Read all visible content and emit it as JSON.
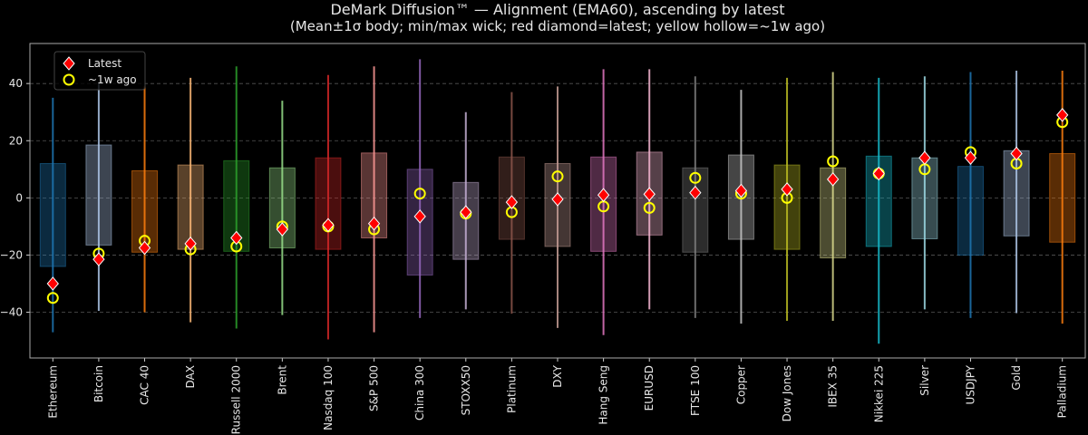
{
  "chart_data": {
    "type": "range",
    "title": "DeMark Diffusion™ — Alignment (EMA60), ascending by latest",
    "subtitle": "(Mean±1σ body; min/max wick; red diamond=latest; yellow hollow=~1w ago)",
    "categories": [
      "Ethereum",
      "Bitcoin",
      "CAC 40",
      "DAX",
      "Russell 2000",
      "Brent",
      "Nasdaq 100",
      "S&P 500",
      "China 300",
      "STOXX50",
      "Platinum",
      "DXY",
      "Hang Seng",
      "EURUSD",
      "FTSE 100",
      "Copper",
      "Dow Jones",
      "IBEX 35",
      "Nikkei 225",
      "Silver",
      "USDJPY",
      "Gold",
      "Palladium"
    ],
    "colors": [
      "#1f77b4",
      "#aec7e8",
      "#ff7f0e",
      "#ffbb78",
      "#2ca02c",
      "#98df8a",
      "#d62728",
      "#ff9896",
      "#9467bd",
      "#c5b0d5",
      "#8c564b",
      "#c49c94",
      "#e377c2",
      "#f7b6d2",
      "#7f7f7f",
      "#c7c7c7",
      "#bcbd22",
      "#dbdb8d",
      "#17becf",
      "#9edae5",
      "#1f77b4",
      "#aec7e8",
      "#ff7f0e"
    ],
    "body_low": [
      -24,
      -16.5,
      -19,
      -18,
      -18.7,
      -17.5,
      -18,
      -14,
      -27,
      -21.5,
      -14.5,
      -17,
      -18.7,
      -13,
      -19,
      -14.5,
      -18,
      -21,
      -17,
      -14.3,
      -20,
      -13.3,
      -15.5
    ],
    "body_high": [
      12,
      18.5,
      9.5,
      11.5,
      13,
      10.5,
      14,
      15.7,
      10,
      5.4,
      14.3,
      12,
      14.3,
      16,
      10.5,
      15,
      11.5,
      10.5,
      14.6,
      14,
      11,
      16.5,
      15.5
    ],
    "wick_min": [
      -47,
      -39.5,
      -40,
      -43.5,
      -45.7,
      -41,
      -49.5,
      -47,
      -42,
      -39,
      -40.5,
      -45.5,
      -48,
      -39,
      -42,
      -44,
      -43,
      -43,
      -51,
      -39,
      -42,
      -40.3,
      -44
    ],
    "wick_max": [
      35,
      40,
      39,
      42,
      46,
      34,
      43,
      46,
      48.5,
      30,
      37,
      39,
      45,
      45,
      42.5,
      37.8,
      42,
      44,
      42,
      42.5,
      44,
      44.5,
      44.5
    ],
    "series": [
      {
        "name": "Latest",
        "color": "#ff0000",
        "values": [
          -30,
          -21.5,
          -17.5,
          -16,
          -14,
          -11,
          -9.5,
          -9,
          -6.5,
          -5,
          -1.5,
          -0.5,
          1,
          1.3,
          1.8,
          2.5,
          3,
          6.5,
          8.5,
          14,
          14,
          15.5,
          29
        ]
      },
      {
        "name": "~1w ago",
        "color": "#ffff00",
        "values": [
          -35,
          -19.5,
          -15,
          -18,
          -17,
          -10,
          -10,
          -11,
          1.5,
          -5.5,
          -5,
          7.5,
          -3,
          -3.5,
          7,
          1.5,
          0,
          12.8,
          8.5,
          10,
          16,
          12,
          26.5
        ]
      }
    ],
    "ylim": [
      -56,
      54
    ],
    "yticks": [
      {
        "value": -40,
        "label": "−40"
      },
      {
        "value": -20,
        "label": "−20"
      },
      0,
      20,
      40
    ],
    "grid": true
  }
}
